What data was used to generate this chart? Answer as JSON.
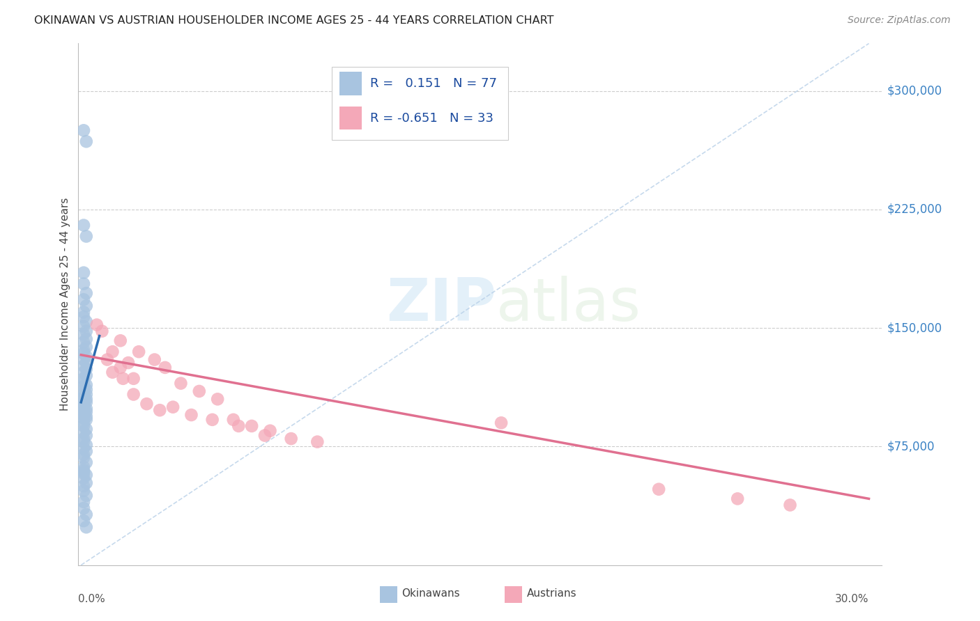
{
  "title": "OKINAWAN VS AUSTRIAN HOUSEHOLDER INCOME AGES 25 - 44 YEARS CORRELATION CHART",
  "source": "Source: ZipAtlas.com",
  "ylabel": "Householder Income Ages 25 - 44 years",
  "ytick_labels": [
    "$75,000",
    "$150,000",
    "$225,000",
    "$300,000"
  ],
  "ytick_values": [
    75000,
    150000,
    225000,
    300000
  ],
  "ymin": 0,
  "ymax": 330000,
  "xmin": -0.001,
  "xmax": 0.305,
  "blue_color": "#a8c4e0",
  "pink_color": "#f4a8b8",
  "blue_line_color": "#2b6cb0",
  "pink_line_color": "#e07090",
  "diag_line_color": "#b8d0e8",
  "okinawan_x": [
    0.001,
    0.002,
    0.001,
    0.002,
    0.001,
    0.001,
    0.002,
    0.001,
    0.002,
    0.001,
    0.001,
    0.002,
    0.001,
    0.002,
    0.001,
    0.002,
    0.001,
    0.002,
    0.001,
    0.001,
    0.002,
    0.001,
    0.002,
    0.001,
    0.002,
    0.001,
    0.002,
    0.001,
    0.001,
    0.002,
    0.001,
    0.002,
    0.001,
    0.002,
    0.001,
    0.001,
    0.002,
    0.001,
    0.002,
    0.001,
    0.001,
    0.002,
    0.001,
    0.002,
    0.001,
    0.001,
    0.002,
    0.001,
    0.002,
    0.001,
    0.001,
    0.002,
    0.001,
    0.002,
    0.001,
    0.001,
    0.002,
    0.001,
    0.002,
    0.001,
    0.001,
    0.002,
    0.001,
    0.001,
    0.002,
    0.001,
    0.002,
    0.001,
    0.001,
    0.002,
    0.001,
    0.001,
    0.002,
    0.001,
    0.002,
    0.001,
    0.001
  ],
  "okinawan_y": [
    275000,
    268000,
    215000,
    208000,
    185000,
    178000,
    172000,
    168000,
    164000,
    160000,
    157000,
    154000,
    151000,
    148000,
    146000,
    143000,
    141000,
    138000,
    136000,
    134000,
    132000,
    130000,
    128000,
    126000,
    124000,
    122000,
    120000,
    118000,
    116000,
    114000,
    113000,
    111000,
    110000,
    108000,
    107000,
    106000,
    105000,
    104000,
    103000,
    102000,
    100000,
    99000,
    98000,
    97000,
    96000,
    95000,
    94000,
    93000,
    92000,
    90000,
    88000,
    86000,
    84000,
    82000,
    80000,
    78000,
    76000,
    74000,
    72000,
    70000,
    68000,
    65000,
    62000,
    59000,
    57000,
    55000,
    52000,
    50000,
    47000,
    44000,
    40000,
    36000,
    32000,
    28000,
    24000,
    60000,
    58000
  ],
  "austrian_x": [
    0.006,
    0.012,
    0.008,
    0.015,
    0.01,
    0.018,
    0.022,
    0.012,
    0.028,
    0.016,
    0.032,
    0.02,
    0.038,
    0.025,
    0.015,
    0.045,
    0.03,
    0.052,
    0.02,
    0.058,
    0.035,
    0.065,
    0.042,
    0.072,
    0.05,
    0.08,
    0.06,
    0.09,
    0.07,
    0.16,
    0.22,
    0.25,
    0.27
  ],
  "austrian_y": [
    152000,
    135000,
    148000,
    142000,
    130000,
    128000,
    135000,
    122000,
    130000,
    118000,
    125000,
    108000,
    115000,
    102000,
    125000,
    110000,
    98000,
    105000,
    118000,
    92000,
    100000,
    88000,
    95000,
    85000,
    92000,
    80000,
    88000,
    78000,
    82000,
    90000,
    48000,
    42000,
    38000
  ],
  "blue_line_x": [
    0.0,
    0.007
  ],
  "blue_line_y": [
    103000,
    145000
  ],
  "pink_line_x": [
    0.0,
    0.3
  ],
  "pink_line_y": [
    133000,
    42000
  ],
  "diag_line_x": [
    0.0,
    0.3
  ],
  "diag_line_y": [
    0,
    330000
  ]
}
